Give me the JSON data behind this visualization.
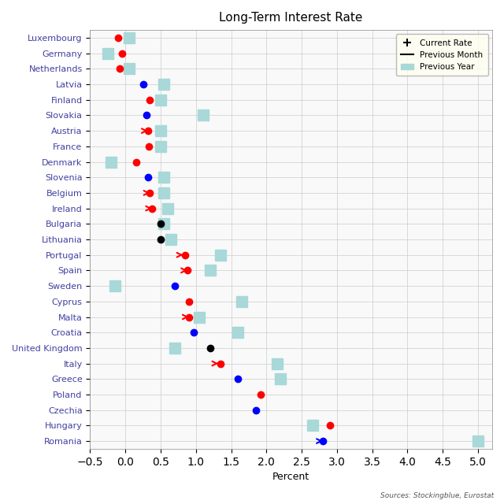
{
  "title": "Long-Term Interest Rate",
  "xlabel": "Percent",
  "source": "Sources: Stockingblue, Eurostat",
  "countries": [
    "Luxembourg",
    "Germany",
    "Netherlands",
    "Latvia",
    "Finland",
    "Slovakia",
    "Austria",
    "France",
    "Denmark",
    "Slovenia",
    "Belgium",
    "Ireland",
    "Bulgaria",
    "Lithuania",
    "Portugal",
    "Spain",
    "Sweden",
    "Cyprus",
    "Malta",
    "Croatia",
    "United Kingdom",
    "Italy",
    "Greece",
    "Poland",
    "Czechia",
    "Hungary",
    "Romania"
  ],
  "current_rate": [
    -0.1,
    -0.05,
    -0.08,
    0.25,
    0.35,
    0.3,
    0.32,
    0.33,
    0.15,
    0.32,
    0.35,
    0.38,
    0.5,
    0.5,
    0.85,
    0.88,
    0.7,
    0.9,
    0.9,
    0.97,
    1.2,
    1.35,
    1.6,
    1.92,
    1.85,
    2.9,
    2.8
  ],
  "current_color": [
    "red",
    "red",
    "red",
    "blue",
    "red",
    "blue",
    "red",
    "red",
    "red",
    "blue",
    "red",
    "red",
    "black",
    "black",
    "red",
    "red",
    "blue",
    "red",
    "red",
    "blue",
    "black",
    "red",
    "blue",
    "red",
    "blue",
    "red",
    "blue"
  ],
  "prev_month": [
    -0.1,
    -0.05,
    -0.08,
    null,
    0.35,
    null,
    0.3,
    0.33,
    null,
    null,
    0.3,
    0.36,
    null,
    null,
    0.78,
    0.82,
    null,
    null,
    0.88,
    null,
    null,
    1.28,
    null,
    null,
    null,
    null,
    2.75
  ],
  "prev_year": [
    0.05,
    -0.25,
    0.05,
    0.55,
    0.5,
    1.1,
    0.5,
    0.5,
    -0.2,
    0.55,
    0.55,
    0.6,
    0.55,
    0.65,
    1.35,
    1.2,
    -0.15,
    1.65,
    1.05,
    1.6,
    0.7,
    2.15,
    2.2,
    null,
    null,
    2.65,
    5.0
  ],
  "xlim": [
    -0.5,
    5.2
  ],
  "bg_color": "#f9f9f9",
  "grid_color": "#cccccc",
  "prev_year_color": "#a8d8d8",
  "prev_month_line_color": "black",
  "arrow_color_map": {
    "red": "red",
    "blue": "blue",
    "black": "black"
  }
}
